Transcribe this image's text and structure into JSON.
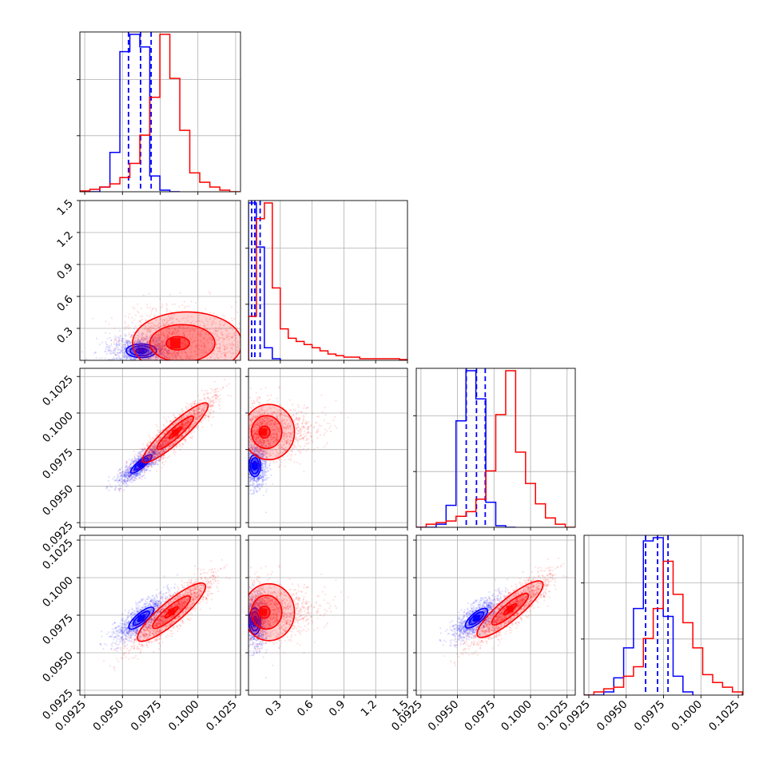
{
  "colors": {
    "series_a": "#0000ff",
    "series_b": "#ff0000",
    "grid": "#b0b0b0",
    "axis": "#000000"
  },
  "chart_data": {
    "type": "corner",
    "grid": true,
    "series": [
      {
        "color": "#0000ff",
        "params": [
          {
            "mean": 0.09625,
            "std": 0.00085,
            "quantiles": [
              0.0954,
              0.0962,
              0.0969
            ]
          },
          {
            "mean": 0.075,
            "std": 0.045,
            "quantiles": [
              0.03,
              0.06,
              0.11
            ]
          },
          {
            "mean": 0.0964,
            "std": 0.0007,
            "quantiles": [
              0.0956,
              0.0963,
              0.0969
            ]
          },
          {
            "mean": 0.0971,
            "std": 0.0008,
            "quantiles": [
              0.0963,
              0.0971,
              0.0978
            ]
          }
        ],
        "histograms": [
          {
            "bin_edges": [
              0.09218,
              0.09284,
              0.0935,
              0.09417,
              0.09483,
              0.09549,
              0.09615,
              0.09681,
              0.09748,
              0.09814,
              0.0988
            ],
            "counts": [
              0.0,
              0.0,
              0.03,
              0.25,
              0.89,
              1.0,
              0.92,
              0.1,
              0.01,
              0.0
            ]
          },
          {
            "bin_edges": [
              0.0,
              0.075,
              0.15,
              0.225,
              0.3
            ],
            "counts": [
              1.0,
              0.72,
              0.08,
              0.01
            ]
          },
          {
            "bin_edges": [
              0.09218,
              0.09286,
              0.09354,
              0.09422,
              0.0949,
              0.09558,
              0.09626,
              0.09694,
              0.09762,
              0.0983,
              0.09898
            ],
            "counts": [
              0.0,
              0.0,
              0.02,
              0.14,
              0.68,
              1.0,
              0.82,
              0.16,
              0.01,
              0.0
            ]
          },
          {
            "bin_edges": [
              0.09218,
              0.09284,
              0.0935,
              0.09417,
              0.09483,
              0.09549,
              0.09615,
              0.09681,
              0.09748,
              0.09814,
              0.0988,
              0.09946
            ],
            "counts": [
              0.0,
              0.0,
              0.02,
              0.11,
              0.3,
              0.55,
              0.98,
              1.0,
              0.5,
              0.12,
              0.02
            ]
          }
        ],
        "contours": [
          {
            "row": 1,
            "col": 0,
            "center": [
              0.09625,
              0.09
            ],
            "size": [
              0.00095,
              0.06
            ],
            "angle": 0.0,
            "levels": [
              0.38,
              0.78,
              1.06
            ],
            "scatter": 1100,
            "stretch": 1.0
          },
          {
            "row": 2,
            "col": 0,
            "center": [
              0.09625,
              0.09652
            ],
            "size": [
              0.0009,
              0.00025
            ],
            "angle": 40.0,
            "levels": [
              0.3,
              0.65,
              1.0
            ],
            "scatter": 1100,
            "stretch": 1.0
          },
          {
            "row": 2,
            "col": 1,
            "center": [
              0.06,
              0.0964
            ],
            "size": [
              0.05,
              0.00068
            ],
            "angle": 0.0,
            "levels": [
              0.4,
              0.8,
              1.1
            ],
            "scatter": 1000,
            "stretch": 1.0
          },
          {
            "row": 3,
            "col": 0,
            "center": [
              0.09625,
              0.0973
            ],
            "size": [
              0.00105,
              0.00035
            ],
            "angle": 40.0,
            "levels": [
              0.3,
              0.65,
              1.0
            ],
            "scatter": 1100,
            "stretch": 1.0
          },
          {
            "row": 3,
            "col": 1,
            "center": [
              0.06,
              0.0971
            ],
            "size": [
              0.05,
              0.0008
            ],
            "angle": 0.0,
            "levels": [
              0.4,
              0.8,
              1.1
            ],
            "scatter": 1000,
            "stretch": 1.0
          },
          {
            "row": 3,
            "col": 2,
            "center": [
              0.0963,
              0.0973
            ],
            "size": [
              0.00095,
              0.00035
            ],
            "angle": 40.0,
            "levels": [
              0.3,
              0.65,
              1.0
            ],
            "scatter": 1100,
            "stretch": 1.0
          }
        ]
      },
      {
        "color": "#ff0000",
        "params": [
          {
            "mean": 0.0983,
            "std": 0.0012
          },
          {
            "mean": 0.34,
            "std": 0.3
          },
          {
            "mean": 0.0988,
            "std": 0.0012
          },
          {
            "mean": 0.0977,
            "std": 0.0013
          }
        ],
        "histograms": [
          {
            "bin_edges": [
              0.09218,
              0.09284,
              0.0935,
              0.09417,
              0.09483,
              0.09549,
              0.09615,
              0.09681,
              0.09748,
              0.09814,
              0.0988,
              0.09946,
              0.10012,
              0.10079,
              0.10145,
              0.10211,
              0.10277
            ],
            "counts": [
              0.005,
              0.015,
              0.03,
              0.05,
              0.09,
              0.18,
              0.36,
              0.6,
              1.0,
              0.72,
              0.39,
              0.12,
              0.06,
              0.03,
              0.01,
              0.0
            ]
          },
          {
            "bin_edges": [
              0.0,
              0.075,
              0.15,
              0.225,
              0.3,
              0.375,
              0.45,
              0.525,
              0.6,
              0.675,
              0.75,
              0.825,
              0.9,
              0.975,
              1.05,
              1.125,
              1.2,
              1.275,
              1.35,
              1.425,
              1.5
            ],
            "counts": [
              0.28,
              0.9,
              1.0,
              0.46,
              0.2,
              0.14,
              0.12,
              0.1,
              0.08,
              0.06,
              0.04,
              0.03,
              0.02,
              0.02,
              0.01,
              0.01,
              0.01,
              0.01,
              0.01,
              0.005
            ]
          },
          {
            "bin_edges": [
              0.09218,
              0.09286,
              0.09354,
              0.09422,
              0.0949,
              0.09558,
              0.09626,
              0.09694,
              0.09762,
              0.0983,
              0.09898,
              0.09966,
              0.10034,
              0.10102,
              0.1017,
              0.10238,
              0.10306
            ],
            "counts": [
              0.0,
              0.02,
              0.03,
              0.04,
              0.07,
              0.1,
              0.18,
              0.36,
              0.72,
              1.0,
              0.48,
              0.28,
              0.15,
              0.06,
              0.02,
              0.0
            ]
          },
          {
            "bin_edges": [
              0.09218,
              0.09284,
              0.0935,
              0.09417,
              0.09483,
              0.09549,
              0.09615,
              0.09681,
              0.09748,
              0.09814,
              0.0988,
              0.09946,
              0.10012,
              0.10079,
              0.10145,
              0.10211,
              0.10277
            ],
            "counts": [
              0.0,
              0.02,
              0.04,
              0.05,
              0.12,
              0.18,
              0.36,
              0.55,
              0.85,
              0.64,
              0.46,
              0.3,
              0.13,
              0.08,
              0.05,
              0.02
            ]
          }
        ],
        "contours": [
          {
            "row": 1,
            "col": 0,
            "center": [
              0.0985,
              0.16
            ],
            "size": [
              0.0015,
              0.14
            ],
            "angle": 0.0,
            "levels": [
              0.45,
              1.25,
              2.1
            ],
            "scatter": 1600,
            "stretch": 2.2
          },
          {
            "row": 2,
            "col": 0,
            "center": [
              0.0985,
              0.09865
            ],
            "size": [
              0.0016,
              0.00035
            ],
            "angle": 42.0,
            "levels": [
              0.35,
              1.0,
              1.8
            ],
            "scatter": 1700,
            "stretch": 1.0
          },
          {
            "row": 2,
            "col": 1,
            "center": [
              0.14,
              0.0987
            ],
            "size": [
              0.1,
              0.0009
            ],
            "angle": 0.0,
            "levels": [
              0.45,
              1.25,
              2.1
            ],
            "scatter": 1500,
            "stretch": 2.2
          },
          {
            "row": 3,
            "col": 0,
            "center": [
              0.09825,
              0.0977
            ],
            "size": [
              0.0016,
              0.0004
            ],
            "angle": 40.0,
            "levels": [
              0.35,
              1.0,
              1.8
            ],
            "scatter": 1700,
            "stretch": 1.0
          },
          {
            "row": 3,
            "col": 1,
            "center": [
              0.14,
              0.0977
            ],
            "size": [
              0.1,
              0.0009
            ],
            "angle": 0.0,
            "levels": [
              0.45,
              1.25,
              2.1
            ],
            "scatter": 1500,
            "stretch": 2.2
          },
          {
            "row": 3,
            "col": 2,
            "center": [
              0.0986,
              0.0979
            ],
            "size": [
              0.0016,
              0.0004
            ],
            "angle": 40.0,
            "levels": [
              0.35,
              1.0,
              1.8
            ],
            "scatter": 1700,
            "stretch": 1.0
          }
        ]
      }
    ],
    "axes": {
      "param_ranges": [
        [
          0.09218,
          0.10282
        ],
        [
          0.0,
          1.5
        ],
        [
          0.09218,
          0.10306
        ],
        [
          0.09218,
          0.10282
        ]
      ],
      "ticks": [
        {
          "values": [
            0.0925,
            0.095,
            0.0975,
            0.1,
            0.1025
          ],
          "labels": [
            "0.0925",
            "0.0950",
            "0.0975",
            "0.1000",
            "0.1025"
          ]
        },
        {
          "values": [
            0.3,
            0.6,
            0.9,
            1.2,
            1.5
          ],
          "labels": [
            "0.3",
            "0.6",
            "0.9",
            "1.2",
            "1.5"
          ]
        },
        {
          "values": [
            0.0925,
            0.095,
            0.0975,
            0.1,
            0.1025
          ],
          "labels": [
            "0.0925",
            "0.0950",
            "0.0975",
            "0.1000",
            "0.1025"
          ]
        },
        {
          "values": [
            0.0925,
            0.095,
            0.0975,
            0.1,
            0.1025
          ],
          "labels": [
            "0.0925",
            "0.0950",
            "0.0975",
            "0.1000",
            "0.1025"
          ]
        }
      ]
    }
  }
}
